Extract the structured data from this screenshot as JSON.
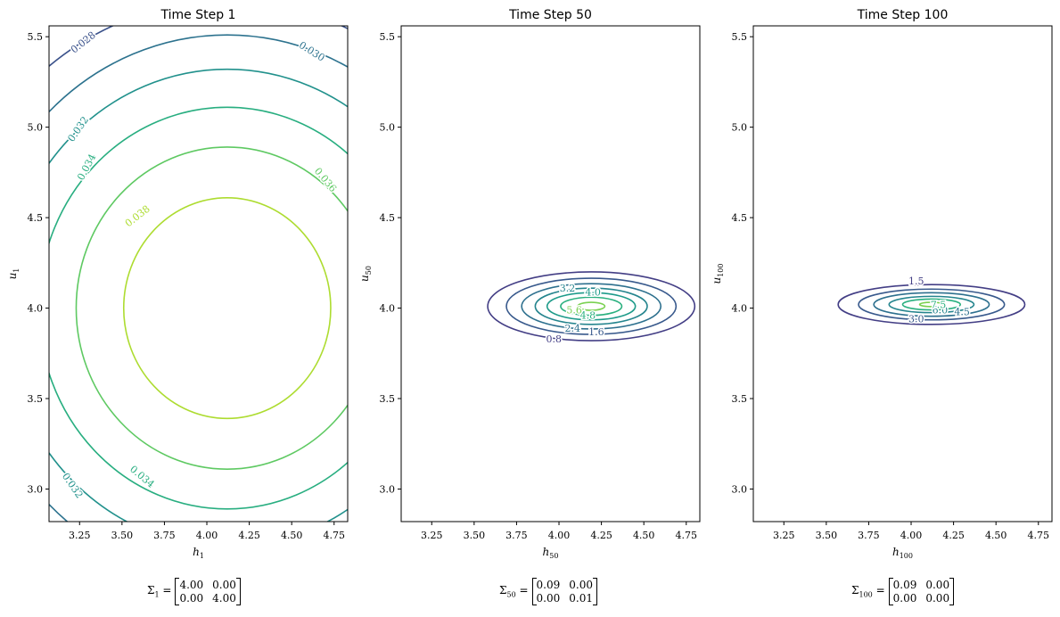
{
  "chart_data": [
    {
      "type": "contour",
      "title": "Time Step 1",
      "xlabel_base": "h",
      "xlabel_sub": "1",
      "ylabel_base": "u",
      "ylabel_sub": "1",
      "xlim": [
        3.07,
        4.83
      ],
      "ylim": [
        2.82,
        5.56
      ],
      "xticks": [
        "3.25",
        "3.50",
        "3.75",
        "4.00",
        "4.25",
        "4.50",
        "4.75"
      ],
      "yticks": [
        "3.0",
        "3.5",
        "4.0",
        "4.5",
        "5.0",
        "5.5"
      ],
      "center": [
        4.12,
        4.0
      ],
      "levels": [
        {
          "label": "0.028",
          "rx": 1.7,
          "ry": 1.7,
          "color": "#3b528b"
        },
        {
          "label": "0.030",
          "rx": 1.51,
          "ry": 1.51,
          "color": "#2c728e"
        },
        {
          "label": "0.032",
          "rx": 1.32,
          "ry": 1.32,
          "color": "#21918c"
        },
        {
          "label": "0.034",
          "rx": 1.11,
          "ry": 1.11,
          "color": "#28ae80"
        },
        {
          "label": "0.036",
          "rx": 0.89,
          "ry": 0.89,
          "color": "#5ec962"
        },
        {
          "label": "0.038",
          "rx": 0.61,
          "ry": 0.61,
          "color": "#addc30"
        }
      ],
      "contour_labels": [
        {
          "text": "0.028",
          "x": 3.27,
          "y": 5.47,
          "angle": -38,
          "color": "#3b528b"
        },
        {
          "text": "0.030",
          "x": 4.62,
          "y": 5.42,
          "angle": 32,
          "color": "#2c728e"
        },
        {
          "text": "0.032",
          "x": 3.24,
          "y": 4.99,
          "angle": -55,
          "color": "#21918c"
        },
        {
          "text": "0.034",
          "x": 3.29,
          "y": 4.78,
          "angle": -62,
          "color": "#28ae80"
        },
        {
          "text": "0.036",
          "x": 4.7,
          "y": 4.71,
          "angle": 50,
          "color": "#5ec962"
        },
        {
          "text": "0.038",
          "x": 3.59,
          "y": 4.51,
          "angle": -38,
          "color": "#addc30"
        },
        {
          "text": "0.032",
          "x": 3.21,
          "y": 3.02,
          "angle": 55,
          "color": "#21918c"
        },
        {
          "text": "0.034",
          "x": 3.62,
          "y": 3.07,
          "angle": 40,
          "color": "#28ae80"
        }
      ],
      "sigma": {
        "label": "Σ",
        "sub": "1",
        "m": [
          "4.00",
          "0.00",
          "0.00",
          "4.00"
        ]
      }
    },
    {
      "type": "contour",
      "title": "Time Step 50",
      "xlabel_base": "h",
      "xlabel_sub": "50",
      "ylabel_base": "u",
      "ylabel_sub": "50",
      "xlim": [
        3.07,
        4.83
      ],
      "ylim": [
        2.82,
        5.56
      ],
      "xticks": [
        "3.25",
        "3.50",
        "3.75",
        "4.00",
        "4.25",
        "4.50",
        "4.75"
      ],
      "yticks": [
        "3.0",
        "3.5",
        "4.0",
        "4.5",
        "5.0",
        "5.5"
      ],
      "center": [
        4.19,
        4.01
      ],
      "levels": [
        {
          "label": "0.8",
          "rx": 0.61,
          "ry": 0.19,
          "color": "#433e85"
        },
        {
          "label": "1.6",
          "rx": 0.5,
          "ry": 0.155,
          "color": "#38598c"
        },
        {
          "label": "2.4",
          "rx": 0.41,
          "ry": 0.125,
          "color": "#2d708e"
        },
        {
          "label": "3.2",
          "rx": 0.33,
          "ry": 0.1,
          "color": "#25858e"
        },
        {
          "label": "4.0",
          "rx": 0.26,
          "ry": 0.075,
          "color": "#1e9b8a"
        },
        {
          "label": "4.8",
          "rx": 0.18,
          "ry": 0.05,
          "color": "#2ab07f"
        },
        {
          "label": "5.6",
          "rx": 0.08,
          "ry": 0.022,
          "color": "#7ad151"
        }
      ],
      "contour_labels": [
        {
          "text": "0.8",
          "x": 3.97,
          "y": 3.83,
          "angle": 0,
          "color": "#433e85"
        },
        {
          "text": "1.6",
          "x": 4.22,
          "y": 3.87,
          "angle": 0,
          "color": "#38598c"
        },
        {
          "text": "2.4",
          "x": 4.08,
          "y": 3.89,
          "angle": 0,
          "color": "#2d708e"
        },
        {
          "text": "3.2",
          "x": 4.05,
          "y": 4.11,
          "angle": 0,
          "color": "#25858e"
        },
        {
          "text": "4.0",
          "x": 4.2,
          "y": 4.09,
          "angle": 0,
          "color": "#1e9b8a"
        },
        {
          "text": "4.8",
          "x": 4.17,
          "y": 3.96,
          "angle": 0,
          "color": "#2ab07f"
        },
        {
          "text": "5.6",
          "x": 4.09,
          "y": 3.99,
          "angle": 0,
          "color": "#7ad151"
        }
      ],
      "sigma": {
        "label": "Σ",
        "sub": "50",
        "m": [
          "0.09",
          "0.00",
          "0.00",
          "0.01"
        ]
      }
    },
    {
      "type": "contour",
      "title": "Time Step 100",
      "xlabel_base": "h",
      "xlabel_sub": "100",
      "ylabel_base": "u",
      "ylabel_sub": "100",
      "xlim": [
        3.07,
        4.83
      ],
      "ylim": [
        2.82,
        5.56
      ],
      "xticks": [
        "3.25",
        "3.50",
        "3.75",
        "4.00",
        "4.25",
        "4.50",
        "4.75"
      ],
      "yticks": [
        "3.0",
        "3.5",
        "4.0",
        "4.5",
        "5.0",
        "5.5"
      ],
      "center": [
        4.12,
        4.02
      ],
      "levels": [
        {
          "label": "1.5",
          "rx": 0.55,
          "ry": 0.11,
          "color": "#433e85"
        },
        {
          "label": "3.0",
          "rx": 0.43,
          "ry": 0.085,
          "color": "#38598c"
        },
        {
          "label": "4.5",
          "rx": 0.34,
          "ry": 0.065,
          "color": "#2d708e"
        },
        {
          "label": "6.0",
          "rx": 0.25,
          "ry": 0.045,
          "color": "#25858e"
        },
        {
          "label": "7.5",
          "rx": 0.17,
          "ry": 0.03,
          "color": "#2ab07f"
        },
        {
          "label": "9.0",
          "rx": 0.07,
          "ry": 0.012,
          "color": "#7ad151"
        }
      ],
      "contour_labels": [
        {
          "text": "1.5",
          "x": 4.03,
          "y": 4.15,
          "angle": 0,
          "color": "#433e85"
        },
        {
          "text": "3.0",
          "x": 4.03,
          "y": 3.94,
          "angle": 0,
          "color": "#38598c"
        },
        {
          "text": "4.5",
          "x": 4.3,
          "y": 3.98,
          "angle": 0,
          "color": "#2d708e"
        },
        {
          "text": "6.0",
          "x": 4.17,
          "y": 3.99,
          "angle": 0,
          "color": "#25858e"
        },
        {
          "text": "7.5",
          "x": 4.16,
          "y": 4.02,
          "angle": 0,
          "color": "#2ab07f"
        }
      ],
      "sigma": {
        "label": "Σ",
        "sub": "100",
        "m": [
          "0.09",
          "0.00",
          "0.00",
          "0.00"
        ]
      }
    }
  ]
}
